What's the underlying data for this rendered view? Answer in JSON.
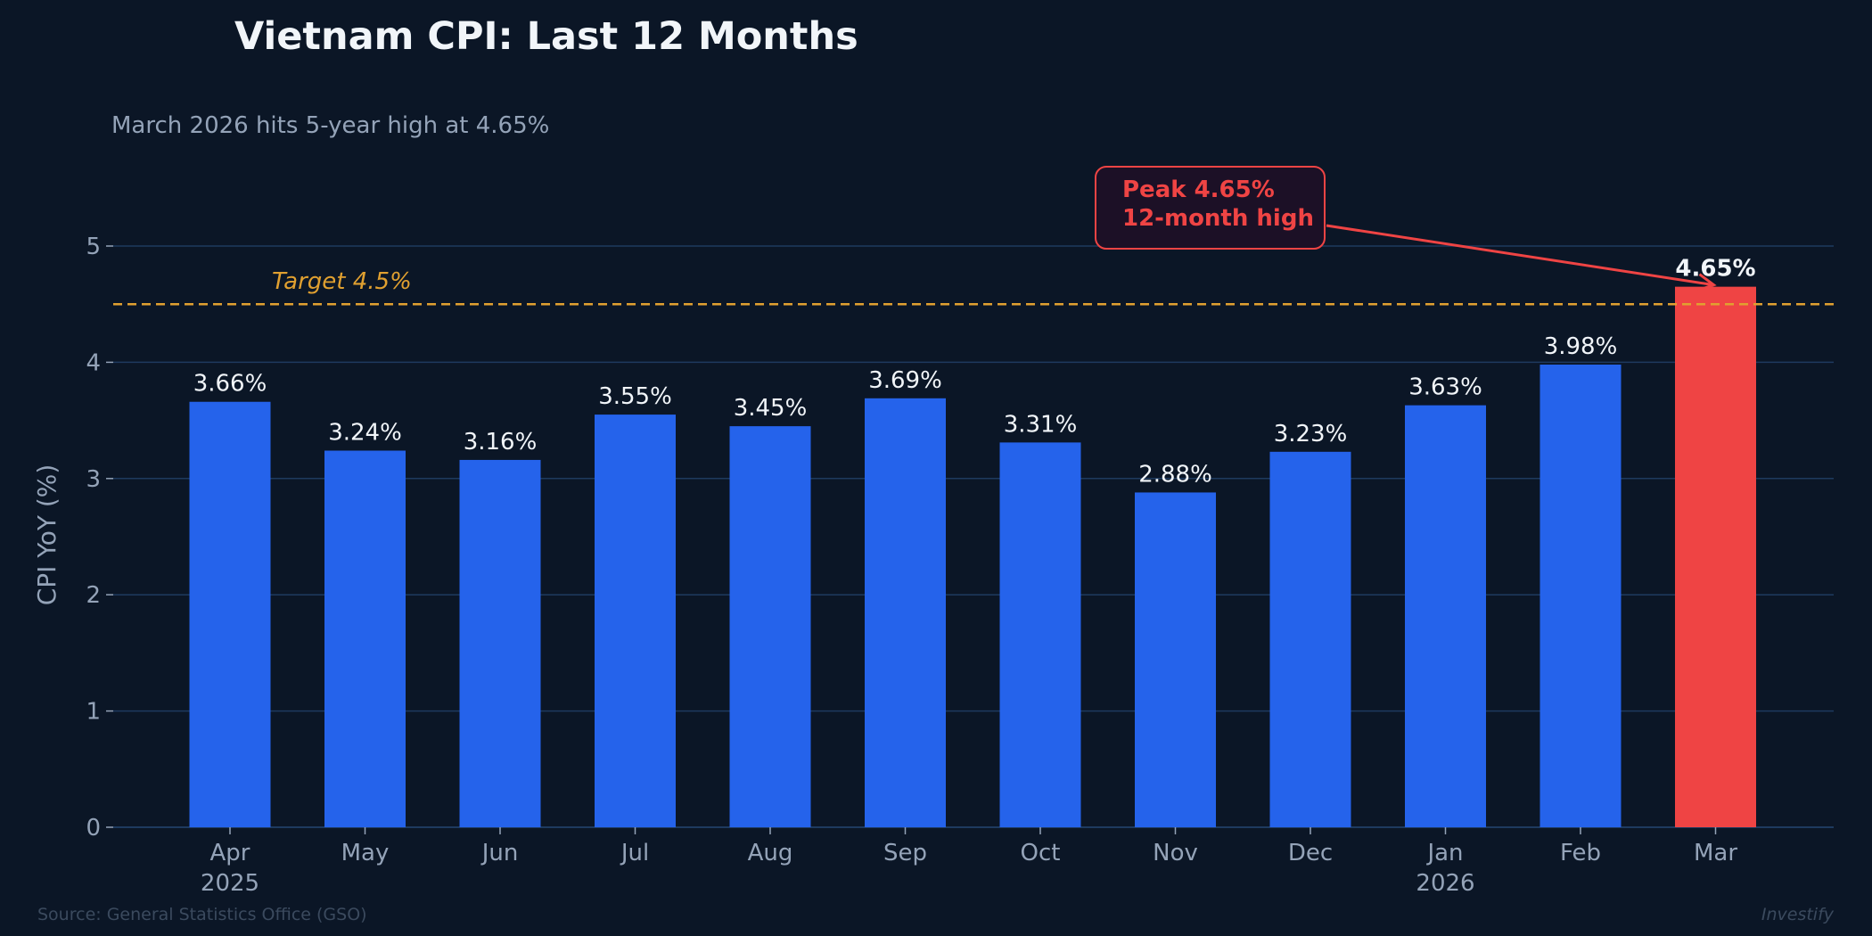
{
  "chart_data": {
    "type": "bar",
    "title": "Vietnam CPI: Last 12 Months",
    "subtitle": "March 2026 hits 5-year high at 4.65%",
    "ylabel": "CPI YoY (%)",
    "xlabel": "",
    "ylim": [
      0,
      5.3
    ],
    "yticks": [
      0,
      1,
      2,
      3,
      4,
      5
    ],
    "grid": true,
    "categories": [
      "Apr",
      "May",
      "Jun",
      "Jul",
      "Aug",
      "Sep",
      "Oct",
      "Nov",
      "Dec",
      "Jan",
      "Feb",
      "Mar"
    ],
    "year_labels": {
      "0": "2025",
      "9": "2026"
    },
    "values": [
      3.66,
      3.24,
      3.16,
      3.55,
      3.45,
      3.69,
      3.31,
      2.88,
      3.23,
      3.63,
      3.98,
      4.65
    ],
    "data_labels": [
      "3.66%",
      "3.24%",
      "3.16%",
      "3.55%",
      "3.45%",
      "3.69%",
      "3.31%",
      "2.88%",
      "3.23%",
      "3.63%",
      "3.98%",
      "4.65%"
    ],
    "highlight_index": 11,
    "colors": {
      "bar": "#2563eb",
      "highlight": "#ef4444",
      "target": "#e0a030",
      "grid": "#1e3a5f",
      "background": "#0b1626"
    },
    "reference_line": {
      "value": 4.5,
      "label": "Target 4.5%",
      "style": "dashed"
    },
    "annotation": {
      "lines": [
        "Peak 4.65%",
        "12-month high"
      ],
      "target_index": 11
    }
  },
  "footer": {
    "source": "Source: General Statistics Office (GSO)",
    "brand": "Investify"
  }
}
